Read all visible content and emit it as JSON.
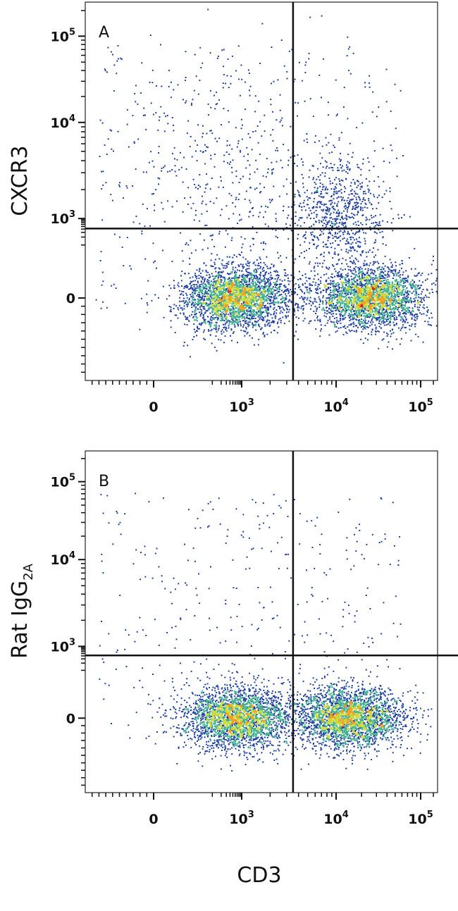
{
  "chart_data": [
    {
      "type": "scatter",
      "panel_label": "A",
      "xlabel": "CD3",
      "ylabel": "CXCR3",
      "axis_scale": "biexponential (logicle)",
      "xlim": [
        -1000,
        250000
      ],
      "ylim": [
        -1000,
        250000
      ],
      "x_ticks": [
        {
          "value": 0,
          "base": "0",
          "exp": ""
        },
        {
          "value": 1000,
          "base": "10",
          "exp": "3"
        },
        {
          "value": 10000,
          "base": "10",
          "exp": "4"
        },
        {
          "value": 100000,
          "base": "10",
          "exp": "5"
        }
      ],
      "y_ticks": [
        {
          "value": 0,
          "base": "0",
          "exp": ""
        },
        {
          "value": 1000,
          "base": "10",
          "exp": "3"
        },
        {
          "value": 10000,
          "base": "10",
          "exp": "4"
        },
        {
          "value": 100000,
          "base": "10",
          "exp": "5"
        }
      ],
      "quadrant_gates": {
        "x": 3500,
        "y": 420
      },
      "populations": [
        {
          "name": "CD3- CXCR3-",
          "x": 650,
          "y": 0,
          "density": "high"
        },
        {
          "name": "CD3+ CXCR3-",
          "x": 25000,
          "y": 0,
          "density": "high"
        },
        {
          "name": "CD3+ CXCR3+",
          "x": 11000,
          "y": 1100,
          "density": "medium"
        },
        {
          "name": "CD3- CXCR3+",
          "x": 600,
          "y": 2000,
          "density": "sparse"
        }
      ],
      "colors": {
        "low": "#1f3f9e",
        "mid": "#3fb08f",
        "midhigh": "#c8d93a",
        "high": "#f0a020",
        "peak": "#e02010"
      }
    },
    {
      "type": "scatter",
      "panel_label": "B",
      "xlabel": "CD3",
      "ylabel": "Rat IgG",
      "ylabel_sub": "2A",
      "axis_scale": "biexponential (logicle)",
      "xlim": [
        -1000,
        250000
      ],
      "ylim": [
        -1000,
        250000
      ],
      "x_ticks": [
        {
          "value": 0,
          "base": "0",
          "exp": ""
        },
        {
          "value": 1000,
          "base": "10",
          "exp": "3"
        },
        {
          "value": 10000,
          "base": "10",
          "exp": "4"
        },
        {
          "value": 100000,
          "base": "10",
          "exp": "5"
        }
      ],
      "y_ticks": [
        {
          "value": 0,
          "base": "0",
          "exp": ""
        },
        {
          "value": 1000,
          "base": "10",
          "exp": "3"
        },
        {
          "value": 10000,
          "base": "10",
          "exp": "4"
        },
        {
          "value": 100000,
          "base": "10",
          "exp": "5"
        }
      ],
      "quadrant_gates": {
        "x": 3500,
        "y": 420
      },
      "populations": [
        {
          "name": "CD3- IgG-",
          "x": 700,
          "y": 0,
          "density": "high"
        },
        {
          "name": "CD3+ IgG-",
          "x": 14000,
          "y": 0,
          "density": "high"
        }
      ],
      "colors": {
        "low": "#1f3f9e",
        "mid": "#3fb08f",
        "midhigh": "#c8d93a",
        "high": "#f0a020",
        "peak": "#e02010"
      }
    }
  ],
  "shared_xlabel": "CD3"
}
